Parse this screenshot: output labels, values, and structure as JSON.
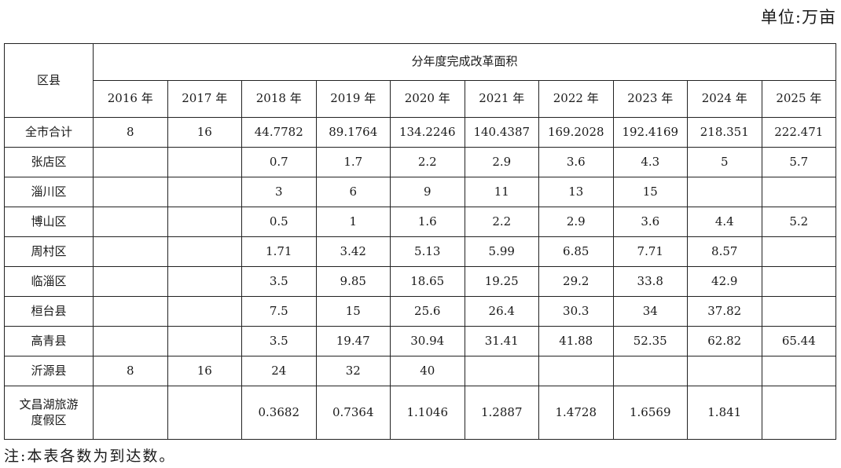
{
  "unit_label": "单位:万亩",
  "table": {
    "region_header": "区县",
    "group_header": "分年度完成改革面积",
    "years": [
      "2016 年",
      "2017 年",
      "2018 年",
      "2019 年",
      "2020 年",
      "2021 年",
      "2022 年",
      "2023 年",
      "2024 年",
      "2025 年"
    ],
    "rows": [
      {
        "name": "全市合计",
        "values": [
          "8",
          "16",
          "44.7782",
          "89.1764",
          "134.2246",
          "140.4387",
          "169.2028",
          "192.4169",
          "218.351",
          "222.471"
        ]
      },
      {
        "name": "张店区",
        "values": [
          "",
          "",
          "0.7",
          "1.7",
          "2.2",
          "2.9",
          "3.6",
          "4.3",
          "5",
          "5.7"
        ]
      },
      {
        "name": "淄川区",
        "values": [
          "",
          "",
          "3",
          "6",
          "9",
          "11",
          "13",
          "15",
          "",
          ""
        ]
      },
      {
        "name": "博山区",
        "values": [
          "",
          "",
          "0.5",
          "1",
          "1.6",
          "2.2",
          "2.9",
          "3.6",
          "4.4",
          "5.2"
        ]
      },
      {
        "name": "周村区",
        "values": [
          "",
          "",
          "1.71",
          "3.42",
          "5.13",
          "5.99",
          "6.85",
          "7.71",
          "8.57",
          ""
        ]
      },
      {
        "name": "临淄区",
        "values": [
          "",
          "",
          "3.5",
          "9.85",
          "18.65",
          "19.25",
          "29.2",
          "33.8",
          "42.9",
          ""
        ]
      },
      {
        "name": "桓台县",
        "values": [
          "",
          "",
          "7.5",
          "15",
          "25.6",
          "26.4",
          "30.3",
          "34",
          "37.82",
          ""
        ]
      },
      {
        "name": "高青县",
        "values": [
          "",
          "",
          "3.5",
          "19.47",
          "30.94",
          "31.41",
          "41.88",
          "52.35",
          "62.82",
          "65.44"
        ]
      },
      {
        "name": "沂源县",
        "values": [
          "8",
          "16",
          "24",
          "32",
          "40",
          "",
          "",
          "",
          "",
          ""
        ]
      },
      {
        "name": "文昌湖旅游度假区",
        "name_lines": [
          "文昌湖旅游",
          "度假区"
        ],
        "values": [
          "",
          "",
          "0.3682",
          "0.7364",
          "1.1046",
          "1.2887",
          "1.4728",
          "1.6569",
          "1.841",
          ""
        ]
      }
    ]
  },
  "note": "注:本表各数为到达数。"
}
